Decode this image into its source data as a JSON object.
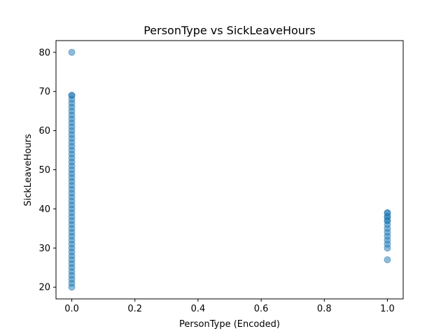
{
  "chart_data": {
    "type": "scatter",
    "title": "PersonType vs SickLeaveHours",
    "xlabel": "PersonType (Encoded)",
    "ylabel": "SickLeaveHours",
    "xlim": [
      -0.05,
      1.05
    ],
    "ylim": [
      17,
      83
    ],
    "x_ticks": [
      0.0,
      0.2,
      0.4,
      0.6,
      0.8,
      1.0
    ],
    "x_tick_labels": [
      "0.0",
      "0.2",
      "0.4",
      "0.6",
      "0.8",
      "1.0"
    ],
    "y_ticks": [
      20,
      30,
      40,
      50,
      60,
      70,
      80
    ],
    "y_tick_labels": [
      "20",
      "30",
      "40",
      "50",
      "60",
      "70",
      "80"
    ],
    "grid": false,
    "legend": "none",
    "marker_color": "#1f77b4",
    "marker_alpha": 0.5,
    "series": [
      {
        "x": [
          0,
          0,
          0,
          0,
          0,
          0,
          0,
          0,
          0,
          0,
          0,
          0,
          0,
          0,
          0,
          0,
          0,
          0,
          0,
          0,
          0,
          0,
          0,
          0,
          0,
          0,
          0,
          0,
          0,
          0,
          0,
          0,
          0,
          0,
          0,
          0,
          0,
          0,
          0,
          0,
          0,
          0,
          0,
          0,
          0,
          0,
          0,
          0,
          0,
          0,
          0,
          0,
          1,
          1,
          1,
          1,
          1,
          1,
          1,
          1,
          1,
          1,
          1,
          1,
          1,
          1
        ],
        "y": [
          20,
          21,
          22,
          23,
          24,
          25,
          26,
          27,
          28,
          29,
          30,
          31,
          32,
          33,
          34,
          35,
          36,
          37,
          38,
          39,
          40,
          41,
          42,
          43,
          44,
          45,
          46,
          47,
          48,
          49,
          50,
          51,
          52,
          53,
          54,
          55,
          56,
          57,
          58,
          59,
          60,
          61,
          62,
          63,
          64,
          65,
          66,
          67,
          68,
          69,
          69,
          80,
          27,
          30,
          31,
          32,
          33,
          34,
          35,
          36,
          37,
          38,
          39,
          38,
          37,
          39
        ]
      }
    ]
  }
}
